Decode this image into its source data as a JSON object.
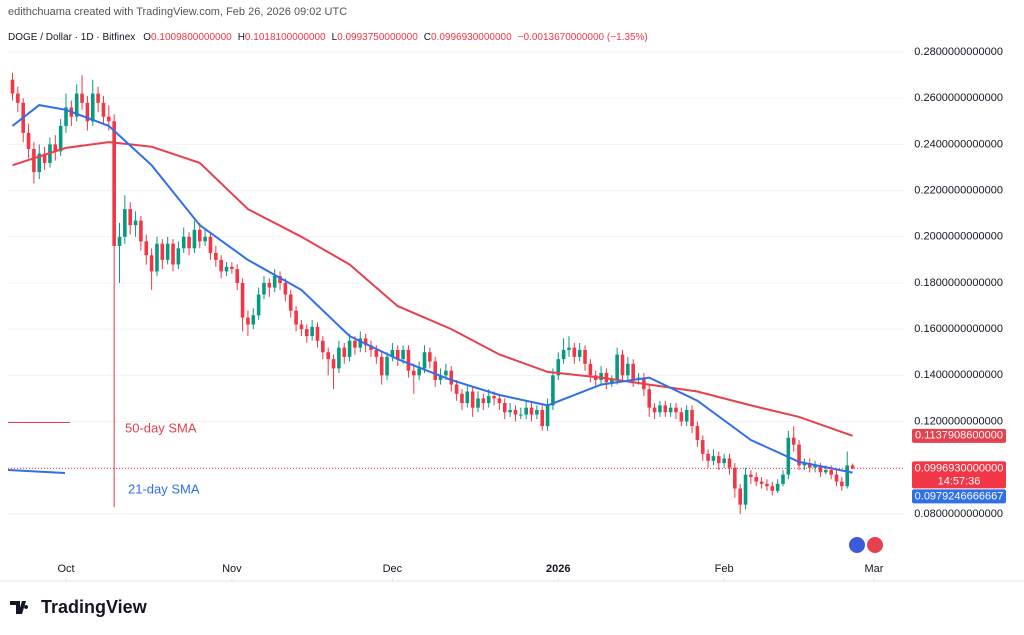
{
  "header": {
    "credit": "edithchuama created with TradingView.com, Feb 26, 2026 09:02 UTC",
    "symbol": "DOGE / Dollar · 1D · Bitfinex",
    "ohlc": [
      {
        "label": "O",
        "value": "0.1009800000000"
      },
      {
        "label": "H",
        "value": "0.1018100000000"
      },
      {
        "label": "L",
        "value": "0.0993750000000"
      },
      {
        "label": "C",
        "value": "0.0996930000000"
      }
    ],
    "change": "−0.0013670000000 (−1.35%)"
  },
  "footer": {
    "brand": "TradingView"
  },
  "chart_data": {
    "type": "candlestick",
    "up_color": "#089981",
    "down_color": "#f23645",
    "grid": true,
    "xlim": [
      -0.84,
      166.8
    ],
    "ylim": [
      0.0622,
      0.293
    ],
    "xticks": [
      {
        "value": 10,
        "label": "Oct"
      },
      {
        "value": 41,
        "label": "Nov"
      },
      {
        "value": 71,
        "label": "Dec"
      },
      {
        "value": 102,
        "label": "2026"
      },
      {
        "value": 133,
        "label": "Feb"
      },
      {
        "value": 161,
        "label": "Mar"
      }
    ],
    "yticks": [
      {
        "value": 0.28,
        "label": "0.2800000000000"
      },
      {
        "value": 0.26,
        "label": "0.2600000000000"
      },
      {
        "value": 0.24,
        "label": "0.2400000000000"
      },
      {
        "value": 0.22,
        "label": "0.2200000000000"
      },
      {
        "value": 0.2,
        "label": "0.2000000000000"
      },
      {
        "value": 0.18,
        "label": "0.1800000000000"
      },
      {
        "value": 0.16,
        "label": "0.1600000000000"
      },
      {
        "value": 0.14,
        "label": "0.1400000000000"
      },
      {
        "value": 0.12,
        "label": "0.1200000000000"
      },
      {
        "value": 0.1,
        "label": "0.1000000000000"
      },
      {
        "value": 0.08,
        "label": "0.0800000000000"
      }
    ],
    "ohlc": [
      [
        0.268,
        0.271,
        0.259,
        0.262
      ],
      [
        0.262,
        0.265,
        0.254,
        0.258
      ],
      [
        0.258,
        0.26,
        0.241,
        0.245
      ],
      [
        0.245,
        0.249,
        0.234,
        0.238
      ],
      [
        0.238,
        0.241,
        0.223,
        0.228
      ],
      [
        0.228,
        0.24,
        0.225,
        0.236
      ],
      [
        0.236,
        0.239,
        0.229,
        0.232
      ],
      [
        0.232,
        0.243,
        0.23,
        0.24
      ],
      [
        0.24,
        0.244,
        0.233,
        0.237
      ],
      [
        0.237,
        0.251,
        0.235,
        0.248
      ],
      [
        0.248,
        0.262,
        0.245,
        0.256
      ],
      [
        0.256,
        0.259,
        0.248,
        0.252
      ],
      [
        0.252,
        0.266,
        0.25,
        0.262
      ],
      [
        0.262,
        0.27,
        0.255,
        0.258
      ],
      [
        0.258,
        0.261,
        0.246,
        0.25
      ],
      [
        0.25,
        0.268,
        0.248,
        0.262
      ],
      [
        0.262,
        0.265,
        0.254,
        0.258
      ],
      [
        0.258,
        0.261,
        0.249,
        0.252
      ],
      [
        0.252,
        0.257,
        0.246,
        0.25
      ],
      [
        0.25,
        0.253,
        0.083,
        0.196
      ],
      [
        0.196,
        0.206,
        0.18,
        0.2
      ],
      [
        0.2,
        0.218,
        0.197,
        0.212
      ],
      [
        0.212,
        0.215,
        0.201,
        0.205
      ],
      [
        0.205,
        0.211,
        0.2,
        0.207
      ],
      [
        0.207,
        0.209,
        0.194,
        0.198
      ],
      [
        0.198,
        0.201,
        0.188,
        0.192
      ],
      [
        0.192,
        0.195,
        0.177,
        0.185
      ],
      [
        0.185,
        0.2,
        0.183,
        0.197
      ],
      [
        0.197,
        0.199,
        0.186,
        0.19
      ],
      [
        0.19,
        0.2,
        0.188,
        0.197
      ],
      [
        0.197,
        0.199,
        0.185,
        0.188
      ],
      [
        0.188,
        0.198,
        0.186,
        0.195
      ],
      [
        0.195,
        0.204,
        0.193,
        0.2
      ],
      [
        0.2,
        0.202,
        0.192,
        0.195
      ],
      [
        0.195,
        0.207,
        0.193,
        0.203
      ],
      [
        0.203,
        0.206,
        0.195,
        0.198
      ],
      [
        0.198,
        0.203,
        0.196,
        0.2
      ],
      [
        0.2,
        0.202,
        0.19,
        0.193
      ],
      [
        0.193,
        0.196,
        0.187,
        0.19
      ],
      [
        0.19,
        0.192,
        0.182,
        0.185
      ],
      [
        0.185,
        0.189,
        0.183,
        0.187
      ],
      [
        0.187,
        0.189,
        0.184,
        0.186
      ],
      [
        0.186,
        0.188,
        0.177,
        0.18
      ],
      [
        0.18,
        0.182,
        0.159,
        0.165
      ],
      [
        0.165,
        0.168,
        0.157,
        0.162
      ],
      [
        0.162,
        0.169,
        0.16,
        0.166
      ],
      [
        0.166,
        0.178,
        0.164,
        0.175
      ],
      [
        0.175,
        0.183,
        0.173,
        0.18
      ],
      [
        0.18,
        0.182,
        0.174,
        0.178
      ],
      [
        0.178,
        0.186,
        0.176,
        0.183
      ],
      [
        0.183,
        0.185,
        0.177,
        0.18
      ],
      [
        0.18,
        0.182,
        0.172,
        0.175
      ],
      [
        0.175,
        0.177,
        0.165,
        0.168
      ],
      [
        0.168,
        0.17,
        0.159,
        0.162
      ],
      [
        0.162,
        0.164,
        0.157,
        0.16
      ],
      [
        0.16,
        0.162,
        0.154,
        0.157
      ],
      [
        0.157,
        0.164,
        0.155,
        0.161
      ],
      [
        0.161,
        0.163,
        0.152,
        0.155
      ],
      [
        0.155,
        0.157,
        0.147,
        0.15
      ],
      [
        0.15,
        0.152,
        0.14,
        0.147
      ],
      [
        0.147,
        0.149,
        0.134,
        0.143
      ],
      [
        0.143,
        0.155,
        0.141,
        0.152
      ],
      [
        0.152,
        0.154,
        0.145,
        0.148
      ],
      [
        0.148,
        0.158,
        0.146,
        0.155
      ],
      [
        0.155,
        0.157,
        0.149,
        0.152
      ],
      [
        0.152,
        0.159,
        0.15,
        0.156
      ],
      [
        0.156,
        0.158,
        0.15,
        0.153
      ],
      [
        0.153,
        0.155,
        0.148,
        0.151
      ],
      [
        0.151,
        0.153,
        0.145,
        0.148
      ],
      [
        0.148,
        0.15,
        0.136,
        0.14
      ],
      [
        0.14,
        0.15,
        0.138,
        0.148
      ],
      [
        0.148,
        0.154,
        0.146,
        0.151
      ],
      [
        0.151,
        0.153,
        0.144,
        0.147
      ],
      [
        0.147,
        0.153,
        0.145,
        0.151
      ],
      [
        0.151,
        0.153,
        0.139,
        0.142
      ],
      [
        0.142,
        0.145,
        0.132,
        0.14
      ],
      [
        0.14,
        0.146,
        0.138,
        0.143
      ],
      [
        0.143,
        0.153,
        0.141,
        0.15
      ],
      [
        0.15,
        0.152,
        0.143,
        0.146
      ],
      [
        0.146,
        0.148,
        0.135,
        0.138
      ],
      [
        0.138,
        0.143,
        0.136,
        0.14
      ],
      [
        0.14,
        0.145,
        0.138,
        0.142
      ],
      [
        0.142,
        0.144,
        0.133,
        0.136
      ],
      [
        0.136,
        0.138,
        0.129,
        0.132
      ],
      [
        0.132,
        0.134,
        0.125,
        0.128
      ],
      [
        0.128,
        0.136,
        0.126,
        0.133
      ],
      [
        0.133,
        0.135,
        0.122,
        0.126
      ],
      [
        0.126,
        0.133,
        0.124,
        0.13
      ],
      [
        0.13,
        0.132,
        0.125,
        0.128
      ],
      [
        0.128,
        0.134,
        0.126,
        0.131
      ],
      [
        0.131,
        0.133,
        0.127,
        0.13
      ],
      [
        0.13,
        0.132,
        0.125,
        0.128
      ],
      [
        0.128,
        0.13,
        0.121,
        0.124
      ],
      [
        0.124,
        0.128,
        0.122,
        0.125
      ],
      [
        0.125,
        0.127,
        0.12,
        0.123
      ],
      [
        0.123,
        0.126,
        0.121,
        0.123
      ],
      [
        0.123,
        0.129,
        0.121,
        0.126
      ],
      [
        0.126,
        0.128,
        0.12,
        0.123
      ],
      [
        0.123,
        0.127,
        0.121,
        0.125
      ],
      [
        0.125,
        0.127,
        0.116,
        0.118
      ],
      [
        0.118,
        0.13,
        0.116,
        0.127
      ],
      [
        0.127,
        0.143,
        0.125,
        0.14
      ],
      [
        0.14,
        0.15,
        0.138,
        0.147
      ],
      [
        0.147,
        0.156,
        0.145,
        0.151
      ],
      [
        0.151,
        0.157,
        0.148,
        0.152
      ],
      [
        0.152,
        0.154,
        0.145,
        0.148
      ],
      [
        0.148,
        0.154,
        0.146,
        0.151
      ],
      [
        0.151,
        0.153,
        0.142,
        0.145
      ],
      [
        0.145,
        0.147,
        0.137,
        0.14
      ],
      [
        0.14,
        0.142,
        0.135,
        0.138
      ],
      [
        0.138,
        0.144,
        0.136,
        0.141
      ],
      [
        0.141,
        0.143,
        0.134,
        0.137
      ],
      [
        0.137,
        0.14,
        0.135,
        0.138
      ],
      [
        0.138,
        0.152,
        0.136,
        0.149
      ],
      [
        0.149,
        0.151,
        0.138,
        0.14
      ],
      [
        0.14,
        0.148,
        0.138,
        0.145
      ],
      [
        0.145,
        0.147,
        0.135,
        0.138
      ],
      [
        0.138,
        0.141,
        0.136,
        0.139
      ],
      [
        0.139,
        0.141,
        0.131,
        0.134
      ],
      [
        0.134,
        0.136,
        0.122,
        0.126
      ],
      [
        0.126,
        0.128,
        0.121,
        0.124
      ],
      [
        0.124,
        0.129,
        0.122,
        0.127
      ],
      [
        0.127,
        0.129,
        0.122,
        0.124
      ],
      [
        0.124,
        0.128,
        0.122,
        0.126
      ],
      [
        0.126,
        0.128,
        0.121,
        0.124
      ],
      [
        0.124,
        0.126,
        0.118,
        0.12
      ],
      [
        0.12,
        0.127,
        0.118,
        0.125
      ],
      [
        0.125,
        0.127,
        0.115,
        0.118
      ],
      [
        0.118,
        0.12,
        0.109,
        0.112
      ],
      [
        0.112,
        0.114,
        0.103,
        0.106
      ],
      [
        0.106,
        0.108,
        0.1,
        0.103
      ],
      [
        0.103,
        0.108,
        0.101,
        0.105
      ],
      [
        0.105,
        0.107,
        0.099,
        0.102
      ],
      [
        0.102,
        0.106,
        0.1,
        0.104
      ],
      [
        0.104,
        0.106,
        0.097,
        0.1
      ],
      [
        0.1,
        0.102,
        0.087,
        0.091
      ],
      [
        0.091,
        0.093,
        0.08,
        0.084
      ],
      [
        0.084,
        0.1,
        0.082,
        0.097
      ],
      [
        0.097,
        0.099,
        0.093,
        0.096
      ],
      [
        0.096,
        0.098,
        0.092,
        0.094
      ],
      [
        0.094,
        0.096,
        0.091,
        0.093
      ],
      [
        0.093,
        0.095,
        0.09,
        0.092
      ],
      [
        0.092,
        0.094,
        0.088,
        0.09
      ],
      [
        0.09,
        0.095,
        0.089,
        0.093
      ],
      [
        0.093,
        0.099,
        0.092,
        0.097
      ],
      [
        0.097,
        0.116,
        0.095,
        0.113
      ],
      [
        0.113,
        0.118,
        0.107,
        0.11
      ],
      [
        0.11,
        0.112,
        0.099,
        0.101
      ],
      [
        0.101,
        0.104,
        0.099,
        0.102
      ],
      [
        0.102,
        0.104,
        0.098,
        0.1
      ],
      [
        0.1,
        0.103,
        0.098,
        0.101
      ],
      [
        0.101,
        0.102,
        0.096,
        0.098
      ],
      [
        0.098,
        0.101,
        0.097,
        0.099
      ],
      [
        0.099,
        0.101,
        0.095,
        0.097
      ],
      [
        0.097,
        0.099,
        0.092,
        0.094
      ],
      [
        0.094,
        0.096,
        0.09,
        0.092
      ],
      [
        0.092,
        0.107,
        0.091,
        0.101
      ],
      [
        0.10098,
        0.10181,
        0.099375,
        0.099693
      ]
    ],
    "series": [
      {
        "name": "50-day SMA",
        "color": "#e5414f",
        "x": [
          0,
          10,
          18,
          26,
          35,
          44,
          54,
          63,
          72,
          82,
          91,
          100,
          110,
          119,
          128,
          138,
          147,
          157
        ],
        "values": [
          0.231,
          0.2385,
          0.241,
          0.239,
          0.232,
          0.212,
          0.2,
          0.188,
          0.17,
          0.16,
          0.149,
          0.1415,
          0.139,
          0.136,
          0.133,
          0.127,
          0.122,
          0.1138
        ]
      },
      {
        "name": "21-day SMA",
        "color": "#2f6fe8",
        "x": [
          0,
          5,
          10,
          18,
          26,
          35,
          44,
          54,
          63,
          72,
          82,
          91,
          100,
          110,
          119,
          128,
          138,
          147,
          157
        ],
        "values": [
          0.248,
          0.257,
          0.255,
          0.248,
          0.231,
          0.205,
          0.19,
          0.177,
          0.157,
          0.147,
          0.138,
          0.1315,
          0.127,
          0.136,
          0.139,
          0.129,
          0.112,
          0.1025,
          0.0979
        ]
      }
    ],
    "price_labels": {
      "sma50": "0.1137908600000",
      "last": "0.0996930000000",
      "countdown": "14:57:36",
      "sma21": "0.0979246666667"
    }
  }
}
